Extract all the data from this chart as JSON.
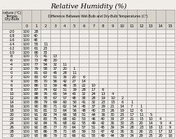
{
  "title": "Relative Humidity (%)",
  "header_main": "Difference Between Wet-Bulb and Dry-Bulb Temperatures (C°)",
  "col_nums": [
    "0",
    "1",
    "2",
    "3",
    "4",
    "5",
    "6",
    "7",
    "8",
    "9",
    "10",
    "11",
    "12",
    "13",
    "14",
    "15"
  ],
  "row_label_header": [
    "Dry-Bulb",
    "Tempe-",
    "rature (°C)"
  ],
  "rows": [
    [
      "-20",
      "100",
      "28",
      "",
      "",
      "",
      "",
      "",
      "",
      "",
      "",
      "",
      "",
      "",
      "",
      "",
      ""
    ],
    [
      "-18",
      "100",
      "40",
      "",
      "",
      "",
      "",
      "",
      "",
      "",
      "",
      "",
      "",
      "",
      "",
      "",
      ""
    ],
    [
      "-16",
      "100",
      "48",
      "",
      "",
      "",
      "",
      "",
      "",
      "",
      "",
      "",
      "",
      "",
      "",
      "",
      ""
    ],
    [
      "-14",
      "100",
      "55",
      "11",
      "",
      "",
      "",
      "",
      "",
      "",
      "",
      "",
      "",
      "",
      "",
      "",
      ""
    ],
    [
      "-12",
      "100",
      "61",
      "23",
      "",
      "",
      "",
      "",
      "",
      "",
      "",
      "",
      "",
      "",
      "",
      "",
      ""
    ],
    [
      "-10",
      "100",
      "66",
      "33",
      "",
      "",
      "",
      "",
      "",
      "",
      "",
      "",
      "",
      "",
      "",
      "",
      ""
    ],
    [
      "-8",
      "100",
      "71",
      "41",
      "13",
      "",
      "",
      "",
      "",
      "",
      "",
      "",
      "",
      "",
      "",
      "",
      ""
    ],
    [
      "-6",
      "100",
      "73",
      "48",
      "20",
      "",
      "",
      "",
      "",
      "",
      "",
      "",
      "",
      "",
      "",
      "",
      ""
    ],
    [
      "-4",
      "100",
      "77",
      "54",
      "32",
      "11",
      "",
      "",
      "",
      "",
      "",
      "",
      "",
      "",
      "",
      "",
      ""
    ],
    [
      "-2",
      "100",
      "79",
      "58",
      "37",
      "20",
      "1",
      "",
      "",
      "",
      "",
      "",
      "",
      "",
      "",
      "",
      ""
    ],
    [
      "0",
      "100",
      "81",
      "63",
      "45",
      "28",
      "11",
      "",
      "",
      "",
      "",
      "",
      "",
      "",
      "",
      "",
      ""
    ],
    [
      "2",
      "100",
      "83",
      "67",
      "51",
      "36",
      "20",
      "6",
      "",
      "",
      "",
      "",
      "",
      "",
      "",
      "",
      ""
    ],
    [
      "4",
      "100",
      "85",
      "70",
      "56",
      "42",
      "27",
      "14",
      "",
      "",
      "",
      "",
      "",
      "",
      "",
      "",
      ""
    ],
    [
      "6",
      "100",
      "86",
      "72",
      "59",
      "46",
      "35",
      "22",
      "10",
      "",
      "",
      "",
      "",
      "",
      "",
      "",
      ""
    ],
    [
      "8",
      "100",
      "87",
      "74",
      "62",
      "51",
      "39",
      "28",
      "17",
      "6",
      "",
      "",
      "",
      "",
      "",
      "",
      ""
    ],
    [
      "10",
      "100",
      "88",
      "76",
      "65",
      "54",
      "43",
      "32",
      "24",
      "13",
      "4",
      "",
      "",
      "",
      "",
      "",
      ""
    ],
    [
      "12",
      "100",
      "88",
      "78",
      "67",
      "57",
      "48",
      "38",
      "28",
      "19",
      "10",
      "2",
      "",
      "",
      "",
      "",
      ""
    ],
    [
      "14",
      "100",
      "89",
      "79",
      "69",
      "60",
      "50",
      "41",
      "32",
      "23",
      "15",
      "6",
      "1",
      "",
      "",
      "",
      ""
    ],
    [
      "16",
      "100",
      "90",
      "80",
      "71",
      "62",
      "54",
      "45",
      "37",
      "29",
      "21",
      "14",
      "7",
      "1",
      "",
      "",
      ""
    ],
    [
      "18",
      "100",
      "91",
      "81",
      "72",
      "64",
      "56",
      "48",
      "40",
      "33",
      "26",
      "19",
      "12",
      "6",
      "",
      "",
      ""
    ],
    [
      "20",
      "100",
      "91",
      "82",
      "74",
      "66",
      "58",
      "51",
      "44",
      "36",
      "30",
      "23",
      "17",
      "11",
      "5",
      "",
      ""
    ],
    [
      "22",
      "100",
      "92",
      "83",
      "75",
      "68",
      "60",
      "53",
      "46",
      "40",
      "33",
      "27",
      "21",
      "15",
      "10",
      "4",
      ""
    ],
    [
      "24",
      "100",
      "92",
      "84",
      "76",
      "68",
      "62",
      "55",
      "49",
      "42",
      "36",
      "30",
      "25",
      "20",
      "14",
      "9",
      "4"
    ],
    [
      "26",
      "100",
      "92",
      "85",
      "77",
      "70",
      "64",
      "57",
      "51",
      "45",
      "39",
      "34",
      "28",
      "23",
      "18",
      "13",
      "9"
    ],
    [
      "28",
      "100",
      "93",
      "86",
      "78",
      "71",
      "65",
      "59",
      "53",
      "47",
      "42",
      "36",
      "31",
      "26",
      "21",
      "17",
      "12"
    ],
    [
      "30",
      "100",
      "93",
      "86",
      "79",
      "72",
      "66",
      "61",
      "55",
      "49",
      "44",
      "39",
      "34",
      "29",
      "25",
      "20",
      "16"
    ]
  ],
  "bg_color": "#f0ede8",
  "header_bg": "#d8d4cc",
  "line_color": "#888888",
  "title_fontsize": 7,
  "cell_fontsize": 3.8
}
